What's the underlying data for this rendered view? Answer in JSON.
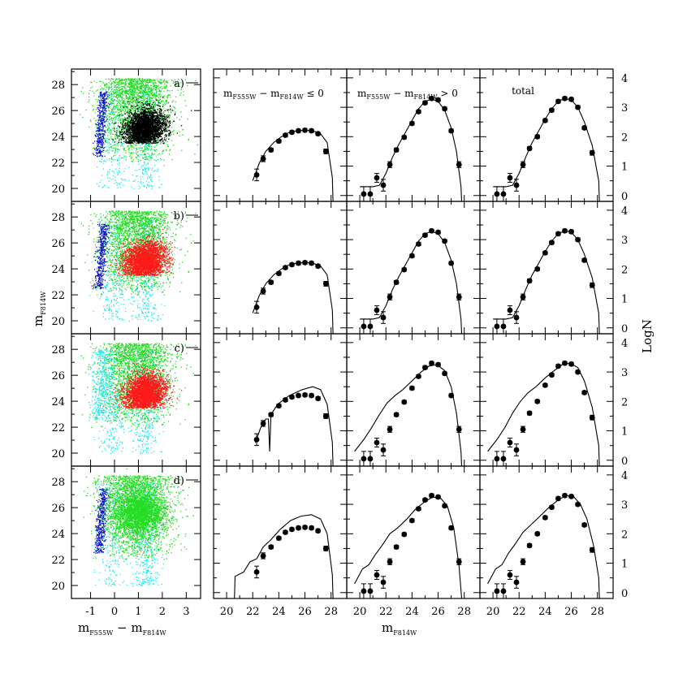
{
  "chart_data": {
    "type": "scatter",
    "layout": "4 rows x 4 columns; column 1 colour-magnitude diagrams, columns 2-4 luminosity functions",
    "colors": {
      "blue": "#1010cc",
      "cyan": "#22e8f0",
      "green": "#22dd22",
      "black": "#000000",
      "red": "#ff1a1a"
    },
    "cmd": {
      "xlabel": "m",
      "xlabel_sub": "F555W",
      "xlabel_mid": " − m",
      "xlabel_sub2": "F814W",
      "ylabel": "m",
      "ylabel_sub": "F814W",
      "xlim": [
        -1.8,
        3.6
      ],
      "ylim": [
        29.2,
        19.0
      ],
      "xticks": [
        "-1",
        "0",
        "1",
        "2",
        "3"
      ],
      "yticks": [
        "20",
        "22",
        "24",
        "26",
        "28"
      ],
      "panels": [
        {
          "label": "a)",
          "overlay": "black",
          "plume": "blue"
        },
        {
          "label": "b)",
          "overlay": "red",
          "plume": "blue"
        },
        {
          "label": "c)",
          "overlay": "red",
          "plume": "cyan"
        },
        {
          "label": "d)",
          "overlay": "green",
          "plume": "blue"
        }
      ]
    },
    "lf": {
      "xlabel": "m",
      "xlabel_sub": "F814W",
      "ylabel": "LogN",
      "xlim": [
        19.0,
        29.2
      ],
      "ylim": [
        -0.2,
        4.3
      ],
      "xticks": [
        "20",
        "22",
        "24",
        "26",
        "28"
      ],
      "yticks": [
        "0",
        "1",
        "2",
        "3",
        "4"
      ],
      "columns": [
        {
          "title_a": "m",
          "sub_a": "F555W",
          "title_b": " − m",
          "sub_b": "F814W",
          "title_c": " ≤ 0",
          "plain": ""
        },
        {
          "title_a": "m",
          "sub_a": "F555W",
          "title_b": " − m",
          "sub_b": "F814W",
          "title_c": " > 0",
          "plain": ""
        },
        {
          "title_a": "",
          "sub_a": "",
          "title_b": "",
          "sub_b": "",
          "title_c": "",
          "plain": "total"
        }
      ],
      "points": [
        {
          "x": [
            22.3,
            22.8,
            23.4,
            24.0,
            24.5,
            25.0,
            25.5,
            26.0,
            26.5,
            27.0,
            27.6
          ],
          "y": [
            0.7,
            1.25,
            1.55,
            1.85,
            2.05,
            2.15,
            2.2,
            2.22,
            2.2,
            2.1,
            1.5
          ],
          "err": [
            0.2,
            0.1,
            0.06,
            0.05,
            0.03,
            0.03,
            0.03,
            0.03,
            0.03,
            0.04,
            0.08
          ]
        },
        {
          "x": [
            20.3,
            20.8,
            21.3,
            21.8,
            22.3,
            22.8,
            23.4,
            24.0,
            24.5,
            25.0,
            25.5,
            26.0,
            26.5,
            27.0,
            27.6
          ],
          "y": [
            0.05,
            0.05,
            0.6,
            0.35,
            1.05,
            1.55,
            1.98,
            2.45,
            2.85,
            3.15,
            3.3,
            3.25,
            2.95,
            2.2,
            1.05
          ],
          "err": [
            0.25,
            0.25,
            0.15,
            0.2,
            0.1,
            0.06,
            0.05,
            0.04,
            0.03,
            0.02,
            0.02,
            0.02,
            0.03,
            0.04,
            0.1
          ]
        },
        {
          "x": [
            20.3,
            20.8,
            21.3,
            21.8,
            22.3,
            22.8,
            23.4,
            24.0,
            24.5,
            25.0,
            25.5,
            26.0,
            26.5,
            27.0,
            27.6
          ],
          "y": [
            0.05,
            0.05,
            0.6,
            0.35,
            1.05,
            1.6,
            2.0,
            2.55,
            2.9,
            3.2,
            3.3,
            3.27,
            3.0,
            2.3,
            1.45
          ],
          "err": [
            0.25,
            0.25,
            0.15,
            0.2,
            0.1,
            0.06,
            0.05,
            0.04,
            0.03,
            0.02,
            0.02,
            0.02,
            0.03,
            0.04,
            0.08
          ]
        }
      ],
      "models": [
        [
          {
            "x": [
              22.0,
              22.5,
              23.0,
              23.6,
              24.2,
              24.8,
              25.4,
              26.0,
              26.6,
              27.2,
              27.7,
              28.1,
              28.15
            ],
            "y": [
              0.5,
              1.1,
              1.5,
              1.8,
              2.0,
              2.15,
              2.2,
              2.22,
              2.2,
              2.1,
              1.8,
              0.6,
              -0.2
            ]
          },
          {
            "x": [
              22.0,
              22.5,
              23.0,
              23.6,
              24.2,
              24.8,
              25.4,
              26.0,
              26.6,
              27.2,
              27.7,
              28.1,
              28.15
            ],
            "y": [
              0.5,
              1.1,
              1.5,
              1.8,
              2.0,
              2.15,
              2.2,
              2.22,
              2.2,
              2.1,
              1.8,
              0.6,
              -0.2
            ]
          },
          {
            "x": [
              22.2,
              22.6,
              23.0,
              23.2,
              23.3,
              23.4,
              23.9,
              24.8,
              25.8,
              26.6,
              27.2,
              27.7,
              28.1,
              28.15
            ],
            "y": [
              0.6,
              1.1,
              1.4,
              1.4,
              0.3,
              1.55,
              1.9,
              2.2,
              2.4,
              2.5,
              2.4,
              1.9,
              0.6,
              -0.2
            ]
          },
          {
            "x": [
              20.6,
              20.65,
              21.3,
              21.8,
              22.3,
              22.8,
              23.4,
              24.1,
              24.9,
              25.7,
              26.5,
              27.2,
              27.7,
              28.1,
              28.15
            ],
            "y": [
              -0.2,
              0.55,
              0.7,
              1.05,
              1.15,
              1.55,
              1.8,
              2.15,
              2.45,
              2.6,
              2.65,
              2.5,
              2.0,
              0.6,
              -0.2
            ]
          }
        ],
        [
          {
            "x": [
              20.0,
              20.5,
              21.0,
              21.5,
              22.0,
              22.5,
              23.0,
              23.5,
              24.0,
              24.5,
              25.0,
              25.5,
              26.0,
              26.5,
              27.0,
              27.4,
              27.75,
              27.8
            ],
            "y": [
              0.3,
              0.3,
              0.3,
              0.35,
              0.75,
              1.3,
              1.75,
              2.15,
              2.55,
              2.95,
              3.2,
              3.28,
              3.2,
              2.9,
              2.3,
              1.5,
              0.3,
              -0.2
            ]
          },
          {
            "x": [
              20.0,
              20.5,
              21.0,
              21.5,
              22.0,
              22.5,
              23.0,
              23.5,
              24.0,
              24.5,
              25.0,
              25.5,
              26.0,
              26.5,
              27.0,
              27.4,
              27.75,
              27.8
            ],
            "y": [
              0.3,
              0.3,
              0.3,
              0.35,
              0.75,
              1.3,
              1.75,
              2.15,
              2.55,
              2.95,
              3.2,
              3.28,
              3.2,
              2.9,
              2.3,
              1.5,
              0.3,
              -0.2
            ]
          },
          {
            "x": [
              19.6,
              20.3,
              20.9,
              21.5,
              22.1,
              22.7,
              23.3,
              24.0,
              24.7,
              25.3,
              25.9,
              26.5,
              27.0,
              27.4,
              27.75,
              27.8
            ],
            "y": [
              0.3,
              0.7,
              1.1,
              1.55,
              1.95,
              2.2,
              2.4,
              2.7,
              3.0,
              3.2,
              3.25,
              3.05,
              2.5,
              1.6,
              0.3,
              -0.2
            ]
          },
          {
            "x": [
              19.6,
              20.2,
              20.7,
              21.2,
              21.7,
              22.3,
              22.9,
              23.6,
              24.3,
              25.0,
              25.6,
              26.2,
              26.7,
              27.2,
              27.6,
              27.8
            ],
            "y": [
              0.3,
              0.8,
              0.95,
              1.3,
              1.6,
              2.0,
              2.2,
              2.5,
              2.85,
              3.1,
              3.25,
              3.2,
              2.95,
              2.2,
              0.9,
              -0.2
            ]
          }
        ],
        [
          {
            "x": [
              20.0,
              20.5,
              21.0,
              21.5,
              22.0,
              22.5,
              23.0,
              23.5,
              24.0,
              24.5,
              25.0,
              25.5,
              26.0,
              26.5,
              27.0,
              27.6,
              28.1,
              28.15
            ],
            "y": [
              0.3,
              0.3,
              0.3,
              0.35,
              0.75,
              1.3,
              1.8,
              2.2,
              2.6,
              2.95,
              3.2,
              3.3,
              3.25,
              3.0,
              2.5,
              1.7,
              0.5,
              -0.2
            ]
          },
          {
            "x": [
              20.0,
              20.5,
              21.0,
              21.5,
              22.0,
              22.5,
              23.0,
              23.5,
              24.0,
              24.5,
              25.0,
              25.5,
              26.0,
              26.5,
              27.0,
              27.6,
              28.1,
              28.15
            ],
            "y": [
              0.3,
              0.3,
              0.3,
              0.35,
              0.75,
              1.3,
              1.8,
              2.2,
              2.6,
              2.95,
              3.2,
              3.3,
              3.25,
              3.0,
              2.5,
              1.7,
              0.5,
              -0.2
            ]
          },
          {
            "x": [
              19.6,
              20.3,
              20.9,
              21.5,
              22.1,
              22.7,
              23.3,
              24.0,
              24.7,
              25.3,
              25.9,
              26.5,
              27.0,
              27.6,
              28.1,
              28.15
            ],
            "y": [
              0.3,
              0.7,
              1.1,
              1.6,
              2.0,
              2.3,
              2.5,
              2.8,
              3.05,
              3.25,
              3.3,
              3.15,
              2.7,
              1.8,
              0.5,
              -0.2
            ]
          },
          {
            "x": [
              19.6,
              20.2,
              20.7,
              21.2,
              21.7,
              22.3,
              22.9,
              23.6,
              24.3,
              25.0,
              25.6,
              26.2,
              26.7,
              27.2,
              27.7,
              28.1,
              28.15
            ],
            "y": [
              0.3,
              0.8,
              0.95,
              1.35,
              1.65,
              2.05,
              2.3,
              2.6,
              2.9,
              3.15,
              3.3,
              3.25,
              3.0,
              2.5,
              1.6,
              0.5,
              -0.2
            ]
          }
        ]
      ]
    }
  }
}
